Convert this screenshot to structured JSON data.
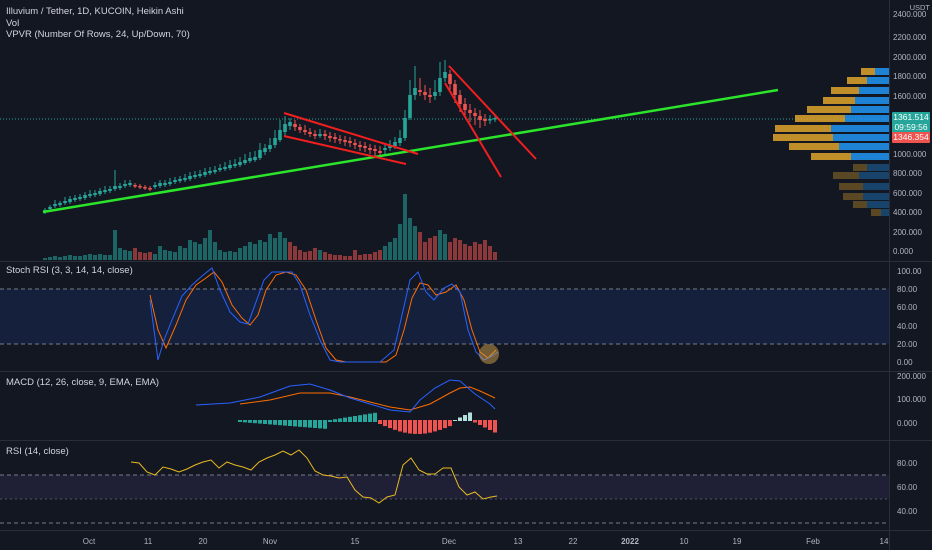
{
  "header": {
    "symbol_line": "Illuvium / Tether, 1D, KUCOIN, Heikin Ashi",
    "vol_label": "Vol",
    "vpvr_label": "VPVR (Number Of Rows, 24, Up/Down, 70)",
    "currency": "USDT"
  },
  "price_pane": {
    "y_ticks": [
      "2400.000",
      "2200.000",
      "2000.000",
      "1800.000",
      "1600.000",
      "1400.000",
      "1200.000",
      "1000.000",
      "800.000",
      "600.000",
      "400.000",
      "200.000",
      "0.000"
    ],
    "last_price": "1361.514",
    "countdown": "09:59:56",
    "level_price": "1346.354"
  },
  "stoch_pane": {
    "label": "Stoch RSI (3, 3, 14, 14, close)",
    "y_ticks": [
      "100.00",
      "80.00",
      "60.00",
      "40.00",
      "20.00",
      "0.00"
    ]
  },
  "macd_pane": {
    "label": "MACD (12, 26, close, 9, EMA, EMA)",
    "y_ticks": [
      "200.000",
      "100.000",
      "0.000"
    ]
  },
  "rsi_pane": {
    "label": "RSI (14, close)",
    "y_ticks": [
      "80.00",
      "60.00",
      "40.00"
    ]
  },
  "x_axis": {
    "labels": [
      "Oct",
      "11",
      "20",
      "Nov",
      "15",
      "Dec",
      "13",
      "22",
      "2022",
      "10",
      "19",
      "Feb",
      "14"
    ]
  },
  "colors": {
    "background": "#131722",
    "up": "#26a69a",
    "down": "#ef5350",
    "trendline": "#2be52b",
    "pattern_lines": "#f21f1f",
    "stoch_k": "#2962ff",
    "stoch_d": "#ff6d00",
    "rsi_line": "#e8b923",
    "vpvr_up": "#2196f3",
    "vpvr_down": "#e0a42a"
  }
}
